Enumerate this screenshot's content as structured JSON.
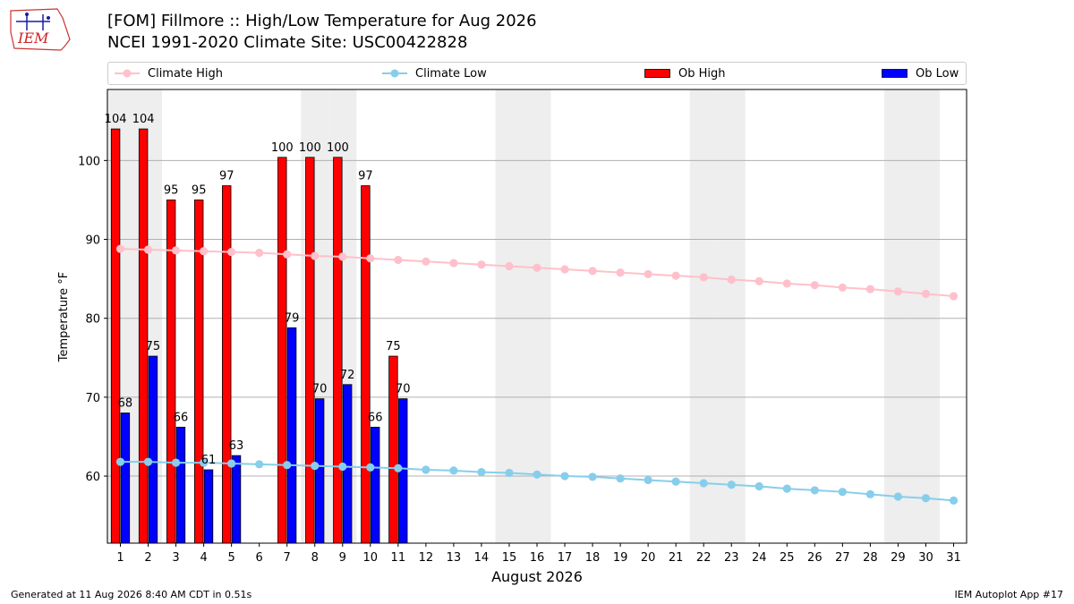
{
  "header": {
    "logo_text": "IEM",
    "title_line1": "[FOM] Fillmore :: High/Low Temperature for Aug 2026",
    "title_line2": "NCEI 1991-2020 Climate Site: USC00422828"
  },
  "legend": {
    "climate_high": "Climate High",
    "climate_low": "Climate Low",
    "ob_high": "Ob High",
    "ob_low": "Ob Low"
  },
  "colors": {
    "climate_high": "#ffc0cb",
    "climate_low": "#87ceeb",
    "ob_high": "#ff0000",
    "ob_low": "#0000ff",
    "weekend_shade": "#eeeeee"
  },
  "footer": {
    "left": "Generated at 11 Aug 2026 8:40 AM CDT in 0.51s",
    "right": "IEM Autoplot App #17"
  },
  "chart_data": {
    "type": "bar",
    "xlabel": "August 2026",
    "ylabel": "Temperature °F",
    "ylim": [
      51.5,
      109
    ],
    "yticks": [
      60,
      70,
      80,
      90,
      100
    ],
    "grid": true,
    "legend_position": "top",
    "days": [
      1,
      2,
      3,
      4,
      5,
      6,
      7,
      8,
      9,
      10,
      11,
      12,
      13,
      14,
      15,
      16,
      17,
      18,
      19,
      20,
      21,
      22,
      23,
      24,
      25,
      26,
      27,
      28,
      29,
      30,
      31
    ],
    "weekend_days": [
      1,
      2,
      8,
      9,
      15,
      16,
      22,
      23,
      29,
      30
    ],
    "ob_high": [
      104,
      104,
      95,
      95,
      97,
      null,
      100,
      100,
      100,
      97,
      75,
      null,
      null,
      null,
      null,
      null,
      null,
      null,
      null,
      null,
      null,
      null,
      null,
      null,
      null,
      null,
      null,
      null,
      null,
      null,
      null
    ],
    "ob_high_values": [
      104,
      104,
      95,
      95,
      96.8,
      null,
      100.4,
      100.4,
      100.4,
      96.8,
      75.2
    ],
    "ob_low": [
      68,
      75,
      66,
      61,
      63,
      null,
      79,
      70,
      72,
      66,
      70,
      null,
      null,
      null,
      null,
      null,
      null,
      null,
      null,
      null,
      null,
      null,
      null,
      null,
      null,
      null,
      null,
      null,
      null,
      null,
      null
    ],
    "ob_low_values": [
      68,
      75.2,
      66.2,
      60.8,
      62.6,
      null,
      78.8,
      69.8,
      71.6,
      66.2,
      69.8
    ],
    "series": [
      {
        "name": "Climate High",
        "values": [
          88.8,
          88.7,
          88.6,
          88.5,
          88.4,
          88.3,
          88.1,
          87.9,
          87.8,
          87.6,
          87.4,
          87.2,
          87.0,
          86.8,
          86.6,
          86.4,
          86.2,
          86.0,
          85.8,
          85.6,
          85.4,
          85.2,
          84.9,
          84.7,
          84.4,
          84.2,
          83.9,
          83.7,
          83.4,
          83.1,
          82.8
        ]
      },
      {
        "name": "Climate Low",
        "values": [
          61.8,
          61.8,
          61.7,
          61.7,
          61.6,
          61.5,
          61.4,
          61.3,
          61.2,
          61.1,
          61.0,
          60.8,
          60.7,
          60.5,
          60.4,
          60.2,
          60.0,
          59.9,
          59.7,
          59.5,
          59.3,
          59.1,
          58.9,
          58.7,
          58.4,
          58.2,
          58.0,
          57.7,
          57.4,
          57.2,
          56.9
        ]
      }
    ]
  }
}
